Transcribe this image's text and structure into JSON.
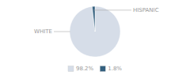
{
  "chart_data": {
    "type": "pie",
    "categories": [
      "WHITE",
      "HISPANIC"
    ],
    "values": [
      98.2,
      1.8
    ],
    "value_labels": [
      "98.2%",
      "1.8%"
    ],
    "colors": [
      "#d6dde8",
      "#34607f"
    ],
    "legend": "bottom"
  }
}
